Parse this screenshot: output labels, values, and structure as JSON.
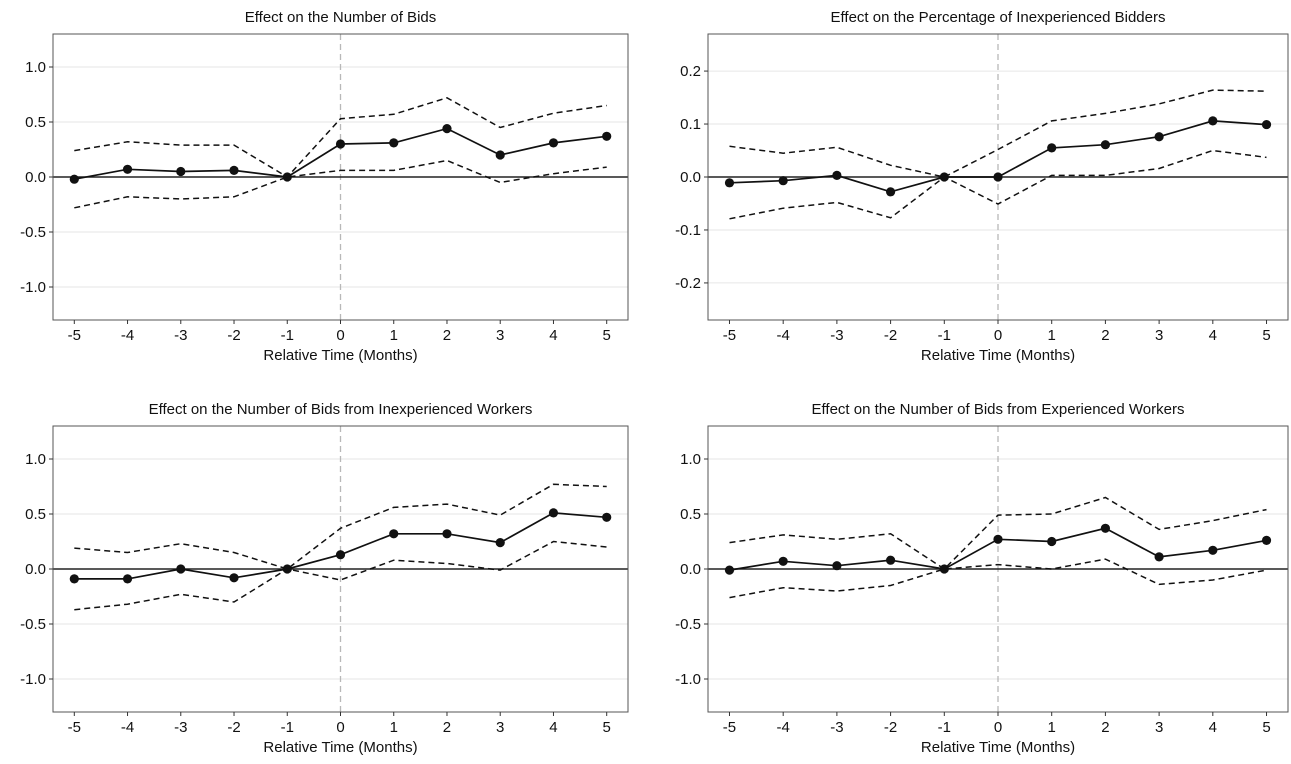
{
  "chart_data": [
    {
      "type": "line",
      "title": "Effect on the Number of Bids",
      "xlabel": "Relative Time (Months)",
      "ylabel": "",
      "x": [
        -5,
        -4,
        -3,
        -2,
        -1,
        0,
        1,
        2,
        3,
        4,
        5
      ],
      "xticks": [
        "-5",
        "-4",
        "-3",
        "-2",
        "-1",
        "0",
        "1",
        "2",
        "3",
        "4",
        "5"
      ],
      "xlim": [
        -5.4,
        5.4
      ],
      "ylim": [
        -1.3,
        1.3
      ],
      "yticks": [
        -1.0,
        -0.5,
        0.0,
        0.5,
        1.0
      ],
      "ytick_labels": [
        "-1.0",
        "-0.5",
        "0.0",
        "0.5",
        "1.0"
      ],
      "event_line_x": 0,
      "grid": "horizontal",
      "series": [
        {
          "role": "estimate",
          "style": "solid-with-points",
          "values": [
            -0.02,
            0.07,
            0.05,
            0.06,
            0.0,
            0.3,
            0.31,
            0.44,
            0.2,
            0.31,
            0.37
          ]
        },
        {
          "role": "upper",
          "style": "dashed",
          "values": [
            0.24,
            0.32,
            0.29,
            0.29,
            0.0,
            0.53,
            0.57,
            0.72,
            0.45,
            0.58,
            0.65
          ]
        },
        {
          "role": "lower",
          "style": "dashed",
          "values": [
            -0.28,
            -0.18,
            -0.2,
            -0.18,
            0.0,
            0.06,
            0.06,
            0.15,
            -0.05,
            0.03,
            0.09
          ]
        }
      ]
    },
    {
      "type": "line",
      "title": "Effect on the Percentage of Inexperienced Bidders",
      "xlabel": "Relative Time (Months)",
      "ylabel": "",
      "x": [
        -5,
        -4,
        -3,
        -2,
        -1,
        0,
        1,
        2,
        3,
        4,
        5
      ],
      "xticks": [
        "-5",
        "-4",
        "-3",
        "-2",
        "-1",
        "0",
        "1",
        "2",
        "3",
        "4",
        "5"
      ],
      "xlim": [
        -5.4,
        5.4
      ],
      "ylim": [
        -0.27,
        0.27
      ],
      "yticks": [
        -0.2,
        -0.1,
        0.0,
        0.1,
        0.2
      ],
      "ytick_labels": [
        "-0.2",
        "-0.1",
        "0.0",
        "0.1",
        "0.2"
      ],
      "event_line_x": 0,
      "grid": "horizontal",
      "series": [
        {
          "role": "estimate",
          "style": "solid-with-points",
          "values": [
            -0.011,
            -0.007,
            0.003,
            -0.028,
            0.0,
            0.0,
            0.055,
            0.061,
            0.076,
            0.106,
            0.099
          ]
        },
        {
          "role": "upper",
          "style": "dashed",
          "values": [
            0.058,
            0.045,
            0.056,
            0.022,
            0.0,
            0.052,
            0.106,
            0.12,
            0.138,
            0.164,
            0.162
          ]
        },
        {
          "role": "lower",
          "style": "dashed",
          "values": [
            -0.079,
            -0.059,
            -0.048,
            -0.077,
            0.0,
            -0.051,
            0.003,
            0.003,
            0.016,
            0.05,
            0.037
          ]
        }
      ]
    },
    {
      "type": "line",
      "title": "Effect on the Number of Bids from Inexperienced Workers",
      "xlabel": "Relative Time (Months)",
      "ylabel": "",
      "x": [
        -5,
        -4,
        -3,
        -2,
        -1,
        0,
        1,
        2,
        3,
        4,
        5
      ],
      "xticks": [
        "-5",
        "-4",
        "-3",
        "-2",
        "-1",
        "0",
        "1",
        "2",
        "3",
        "4",
        "5"
      ],
      "xlim": [
        -5.4,
        5.4
      ],
      "ylim": [
        -1.3,
        1.3
      ],
      "yticks": [
        -1.0,
        -0.5,
        0.0,
        0.5,
        1.0
      ],
      "ytick_labels": [
        "-1.0",
        "-0.5",
        "0.0",
        "0.5",
        "1.0"
      ],
      "event_line_x": 0,
      "grid": "horizontal",
      "series": [
        {
          "role": "estimate",
          "style": "solid-with-points",
          "values": [
            -0.09,
            -0.09,
            0.0,
            -0.08,
            0.0,
            0.13,
            0.32,
            0.32,
            0.24,
            0.51,
            0.47
          ]
        },
        {
          "role": "upper",
          "style": "dashed",
          "values": [
            0.19,
            0.15,
            0.23,
            0.15,
            0.0,
            0.37,
            0.56,
            0.59,
            0.49,
            0.77,
            0.75
          ]
        },
        {
          "role": "lower",
          "style": "dashed",
          "values": [
            -0.37,
            -0.32,
            -0.23,
            -0.3,
            0.0,
            -0.1,
            0.08,
            0.05,
            -0.01,
            0.25,
            0.2
          ]
        }
      ]
    },
    {
      "type": "line",
      "title": "Effect on the Number of Bids from Experienced Workers",
      "xlabel": "Relative Time (Months)",
      "ylabel": "",
      "x": [
        -5,
        -4,
        -3,
        -2,
        -1,
        0,
        1,
        2,
        3,
        4,
        5
      ],
      "xticks": [
        "-5",
        "-4",
        "-3",
        "-2",
        "-1",
        "0",
        "1",
        "2",
        "3",
        "4",
        "5"
      ],
      "xlim": [
        -5.4,
        5.4
      ],
      "ylim": [
        -1.3,
        1.3
      ],
      "yticks": [
        -1.0,
        -0.5,
        0.0,
        0.5,
        1.0
      ],
      "ytick_labels": [
        "-1.0",
        "-0.5",
        "0.0",
        "0.5",
        "1.0"
      ],
      "event_line_x": 0,
      "grid": "horizontal",
      "series": [
        {
          "role": "estimate",
          "style": "solid-with-points",
          "values": [
            -0.01,
            0.07,
            0.03,
            0.08,
            0.0,
            0.27,
            0.25,
            0.37,
            0.11,
            0.17,
            0.26
          ]
        },
        {
          "role": "upper",
          "style": "dashed",
          "values": [
            0.24,
            0.31,
            0.27,
            0.32,
            0.0,
            0.49,
            0.5,
            0.65,
            0.36,
            0.44,
            0.54
          ]
        },
        {
          "role": "lower",
          "style": "dashed",
          "values": [
            -0.26,
            -0.17,
            -0.2,
            -0.15,
            0.0,
            0.04,
            0.0,
            0.09,
            -0.14,
            -0.1,
            -0.01
          ]
        }
      ]
    }
  ]
}
